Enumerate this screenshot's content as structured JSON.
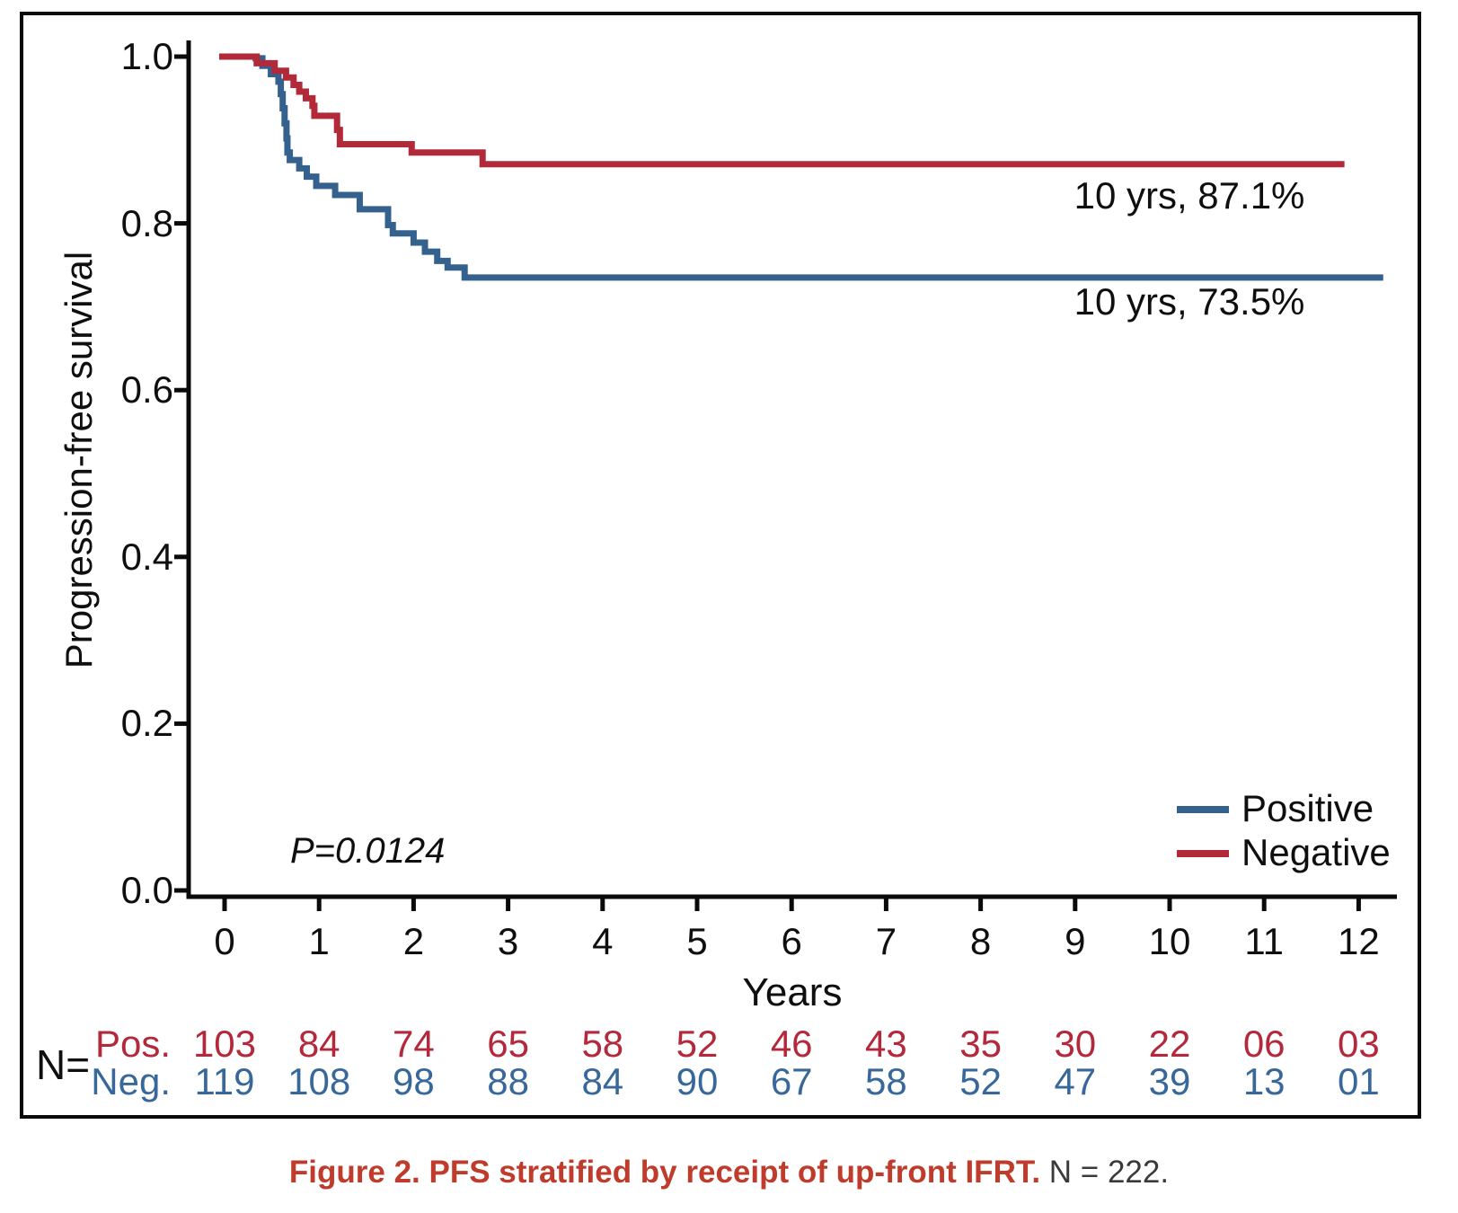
{
  "figure": {
    "caption_bold": "Figure 2. PFS stratified by receipt of up-front IFRT.",
    "caption_rest": "N = 222."
  },
  "colors": {
    "positive_line": "#35618e",
    "negative_line": "#b2293a",
    "pos_row_text": "#b3293b",
    "neg_row_text": "#38689a",
    "caption_accent": "#bf3b2b",
    "axis": "#0a0a0a"
  },
  "chart_data": {
    "type": "line",
    "subtype": "kaplan-meier-step",
    "title": "",
    "xlabel": "Years",
    "ylabel": "Progression-free survival",
    "xlim": [
      0,
      12.4
    ],
    "ylim": [
      0,
      1.0
    ],
    "x_ticks": [
      "0",
      "1",
      "2",
      "3",
      "4",
      "5",
      "6",
      "7",
      "8",
      "9",
      "10",
      "11",
      "12"
    ],
    "y_ticks": [
      {
        "value": 0.0,
        "label": "0.0"
      },
      {
        "value": 0.2,
        "label": "0.2"
      },
      {
        "value": 0.4,
        "label": "0.4"
      },
      {
        "value": 0.6,
        "label": "0.6"
      },
      {
        "value": 0.8,
        "label": "0.8"
      },
      {
        "value": 1.0,
        "label": "1.0"
      }
    ],
    "grid": false,
    "legend_position": "lower right",
    "p_value_label": "P=0.0124",
    "series": [
      {
        "name": "Positive",
        "color": "#35618e",
        "annotation": "10 yrs, 73.5%",
        "end_time": 12.26,
        "steps": [
          [
            0,
            1.0
          ],
          [
            0.33,
            0.998
          ],
          [
            0.4,
            0.989
          ],
          [
            0.49,
            0.979
          ],
          [
            0.57,
            0.97
          ],
          [
            0.595,
            0.955
          ],
          [
            0.615,
            0.938
          ],
          [
            0.635,
            0.92
          ],
          [
            0.655,
            0.902
          ],
          [
            0.665,
            0.885
          ],
          [
            0.69,
            0.876
          ],
          [
            0.79,
            0.866
          ],
          [
            0.87,
            0.856
          ],
          [
            0.97,
            0.845
          ],
          [
            1.17,
            0.834
          ],
          [
            1.43,
            0.817
          ],
          [
            1.73,
            0.798
          ],
          [
            1.78,
            0.788
          ],
          [
            2.0,
            0.777
          ],
          [
            2.12,
            0.766
          ],
          [
            2.25,
            0.755
          ],
          [
            2.36,
            0.747
          ],
          [
            2.54,
            0.735
          ]
        ]
      },
      {
        "name": "Negative",
        "color": "#b2293a",
        "annotation": "10 yrs, 87.1%",
        "end_time": 11.85,
        "steps": [
          [
            0,
            1.0
          ],
          [
            0.34,
            0.992
          ],
          [
            0.53,
            0.983
          ],
          [
            0.65,
            0.975
          ],
          [
            0.73,
            0.966
          ],
          [
            0.79,
            0.958
          ],
          [
            0.86,
            0.95
          ],
          [
            0.93,
            0.941
          ],
          [
            0.95,
            0.929
          ],
          [
            1.19,
            0.912
          ],
          [
            1.22,
            0.895
          ],
          [
            1.98,
            0.885
          ],
          [
            2.73,
            0.871
          ]
        ]
      }
    ],
    "at_risk_table": {
      "axis_label": "N=",
      "rows": [
        {
          "label": "Pos.",
          "color": "#b3293b",
          "values": [
            "103",
            "84",
            "74",
            "65",
            "58",
            "52",
            "46",
            "43",
            "35",
            "30",
            "22",
            "06",
            "03"
          ]
        },
        {
          "label": "Neg.",
          "color": "#38689a",
          "values": [
            "119",
            "108",
            "98",
            "88",
            "84",
            "90",
            "67",
            "58",
            "52",
            "47",
            "39",
            "13",
            "01"
          ]
        }
      ]
    }
  }
}
